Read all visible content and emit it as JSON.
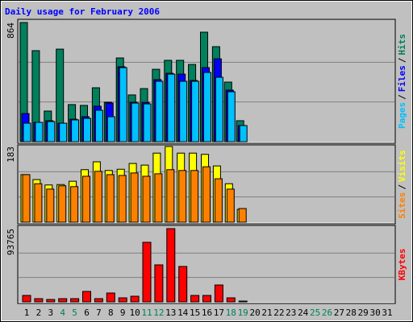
{
  "chart_data": [
    {
      "type": "bar",
      "title": "Daily usage for February 2006",
      "ylim": [
        0,
        864
      ],
      "yticks": [
        864
      ],
      "grid_divisions": 3,
      "legend_separator": "/",
      "series": [
        {
          "name": "Hits",
          "color": "#00805c",
          "values": [
            864,
            660,
            222,
            671,
            269,
            263,
            391,
            286,
            607,
            339,
            385,
            525,
            590,
            590,
            560,
            794,
            689,
            432,
            152,
            null,
            null,
            null,
            null,
            null,
            null,
            null,
            null,
            null,
            null,
            null,
            null
          ]
        },
        {
          "name": "Files",
          "color": "#0000ff",
          "values": [
            204,
            140,
            152,
            134,
            163,
            181,
            257,
            280,
            543,
            286,
            285,
            450,
            496,
            490,
            444,
            537,
            601,
            374,
            117,
            null,
            null,
            null,
            null,
            null,
            null,
            null,
            null,
            null,
            null,
            null,
            null
          ]
        },
        {
          "name": "Pages",
          "color": "#00c0ff",
          "values": [
            134,
            140,
            146,
            134,
            158,
            169,
            228,
            181,
            537,
            280,
            274,
            438,
            490,
            438,
            438,
            502,
            467,
            362,
            117,
            null,
            null,
            null,
            null,
            null,
            null,
            null,
            null,
            null,
            null,
            null,
            null
          ]
        }
      ]
    },
    {
      "type": "bar",
      "ylim": [
        0,
        183
      ],
      "yticks": [
        183
      ],
      "grid_divisions": 3,
      "legend_separator": "/",
      "series": [
        {
          "name": "Visits",
          "color": "#ffff00",
          "values": [
            115,
            103,
            90,
            91,
            99,
            127,
            146,
            125,
            128,
            142,
            138,
            167,
            183,
            167,
            167,
            164,
            136,
            93,
            31,
            null,
            null,
            null,
            null,
            null,
            null,
            null,
            null,
            null,
            null,
            null,
            null
          ]
        },
        {
          "name": "Sites",
          "color": "#ff8000",
          "values": [
            115,
            93,
            80,
            88,
            86,
            111,
            123,
            115,
            113,
            119,
            111,
            117,
            127,
            125,
            125,
            134,
            105,
            80,
            33,
            null,
            null,
            null,
            null,
            null,
            null,
            null,
            null,
            null,
            null,
            null,
            null
          ]
        }
      ]
    },
    {
      "type": "bar",
      "ylim": [
        0,
        93765
      ],
      "yticks": [
        93765
      ],
      "grid_divisions": 3,
      "legend_separator": "/",
      "categories": [
        "1",
        "2",
        "3",
        "4",
        "5",
        "6",
        "7",
        "8",
        "9",
        "10",
        "11",
        "12",
        "13",
        "14",
        "15",
        "16",
        "17",
        "18",
        "19",
        "20",
        "21",
        "22",
        "23",
        "24",
        "25",
        "26",
        "27",
        "28",
        "29",
        "30",
        "31"
      ],
      "category_colors": [
        "#000000",
        "#000000",
        "#000000",
        "#00805c",
        "#00805c",
        "#000000",
        "#000000",
        "#000000",
        "#000000",
        "#000000",
        "#00805c",
        "#00805c",
        "#000000",
        "#000000",
        "#000000",
        "#000000",
        "#000000",
        "#00805c",
        "#00805c",
        "#000000",
        "#000000",
        "#000000",
        "#000000",
        "#000000",
        "#00805c",
        "#00805c",
        "#000000",
        "#000000",
        "#000000",
        "#000000",
        "#000000"
      ],
      "series": [
        {
          "name": "KBytes",
          "color": "#ff0000",
          "values": [
            8243,
            4122,
            3091,
            4122,
            4122,
            13395,
            4122,
            11334,
            5152,
            7213,
            76248,
            47398,
            93765,
            45337,
            8243,
            8243,
            21638,
            5152,
            1030,
            null,
            null,
            null,
            null,
            null,
            null,
            null,
            null,
            null,
            null,
            null,
            null
          ]
        }
      ]
    }
  ]
}
